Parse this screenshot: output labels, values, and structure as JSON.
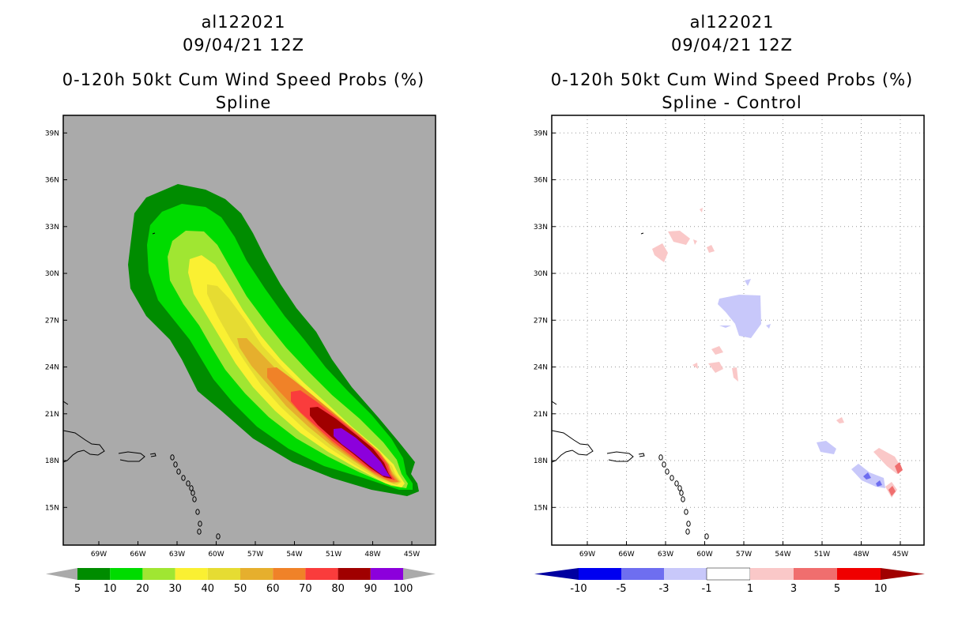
{
  "chart_data": [
    {
      "type": "filled-contour-map",
      "titles": [
        "al122021",
        "09/04/21 12Z",
        "0-120h 50kt Cum Wind Speed Probs (%)",
        "Spline"
      ],
      "x_ticks": [
        "69W",
        "66W",
        "63W",
        "60W",
        "57W",
        "54W",
        "51W",
        "48W",
        "45W"
      ],
      "y_ticks": [
        "39N",
        "36N",
        "33N",
        "30N",
        "27N",
        "24N",
        "21N",
        "18N",
        "15N"
      ],
      "lon_range": [
        -72,
        -44
      ],
      "lat_range": [
        12.5,
        40
      ],
      "grid": false,
      "colorbar": {
        "labels": [
          "5",
          "10",
          "20",
          "30",
          "40",
          "50",
          "60",
          "70",
          "80",
          "90",
          "100"
        ],
        "colors": [
          "#008c00",
          "#00dc00",
          "#a0e632",
          "#faf032",
          "#e6dc32",
          "#e6af2d",
          "#f08228",
          "#fa3c3c",
          "#a00000",
          "#8c00dc"
        ]
      },
      "field_center_track_lonlat": [
        [
          -46.5,
          16.5
        ],
        [
          -49,
          18.5
        ],
        [
          -52,
          21
        ],
        [
          -56,
          24
        ],
        [
          -59,
          28
        ],
        [
          -60,
          30.5
        ]
      ],
      "max_probability_percent": 100
    },
    {
      "type": "filled-contour-map",
      "titles": [
        "al122021",
        "09/04/21 12Z",
        "0-120h 50kt Cum Wind Speed Probs (%)",
        "Spline - Control"
      ],
      "x_ticks": [
        "69W",
        "66W",
        "63W",
        "60W",
        "57W",
        "54W",
        "51W",
        "48W",
        "45W"
      ],
      "y_ticks": [
        "39N",
        "36N",
        "33N",
        "30N",
        "27N",
        "24N",
        "21N",
        "18N",
        "15N"
      ],
      "lon_range": [
        -72,
        -44
      ],
      "lat_range": [
        12.5,
        40
      ],
      "grid": true,
      "colorbar": {
        "labels": [
          "-10",
          "-5",
          "-3",
          "-1",
          "1",
          "3",
          "5",
          "10"
        ],
        "colors": [
          "#0000a0",
          "#0000f0",
          "#6e6ef0",
          "#c8c8fa",
          "#ffffff",
          "#fac8c8",
          "#f06e6e",
          "#f00000",
          "#a00000"
        ]
      }
    }
  ]
}
